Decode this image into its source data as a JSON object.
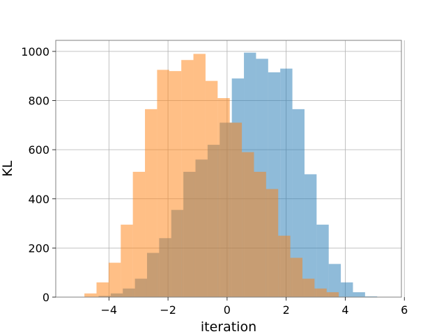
{
  "chart_data": {
    "type": "bar",
    "title": "",
    "xlabel": "iteration",
    "ylabel": "KL",
    "xlim": [
      -5.8,
      5.9
    ],
    "ylim": [
      0,
      1045
    ],
    "xticks": [
      -4,
      -2,
      0,
      2,
      4,
      6
    ],
    "xtick_labels": [
      "−4",
      "−2",
      "0",
      "2",
      "4",
      "6"
    ],
    "yticks": [
      0,
      200,
      400,
      600,
      800,
      1000
    ],
    "ytick_labels": [
      "0",
      "200",
      "400",
      "600",
      "800",
      "1000"
    ],
    "grid": true,
    "legend": "none",
    "series": [
      {
        "color": "#1f77b4",
        "alpha": 0.5,
        "bins": [
          -4.35,
          -3.94,
          -3.53,
          -3.12,
          -2.71,
          -2.3,
          -1.89,
          -1.48,
          -1.07,
          -0.66,
          -0.25,
          0.16,
          0.57,
          0.98,
          1.39,
          1.8,
          2.21,
          2.62,
          3.03,
          3.44,
          3.85,
          4.26,
          4.67,
          5.08
        ],
        "values": [
          5,
          15,
          35,
          75,
          180,
          240,
          355,
          510,
          560,
          620,
          710,
          890,
          995,
          970,
          915,
          930,
          765,
          500,
          295,
          135,
          60,
          20,
          3
        ]
      },
      {
        "color": "#ff7f0e",
        "alpha": 0.5,
        "bins": [
          -4.83,
          -4.42,
          -4.01,
          -3.6,
          -3.19,
          -2.78,
          -2.37,
          -1.96,
          -1.55,
          -1.14,
          -0.73,
          -0.32,
          0.09,
          0.5,
          0.91,
          1.32,
          1.73,
          2.14,
          2.55,
          2.96,
          3.37,
          3.78
        ],
        "values": [
          15,
          60,
          140,
          295,
          510,
          765,
          925,
          920,
          965,
          990,
          880,
          810,
          710,
          590,
          510,
          440,
          250,
          160,
          75,
          35,
          20
        ]
      }
    ]
  }
}
